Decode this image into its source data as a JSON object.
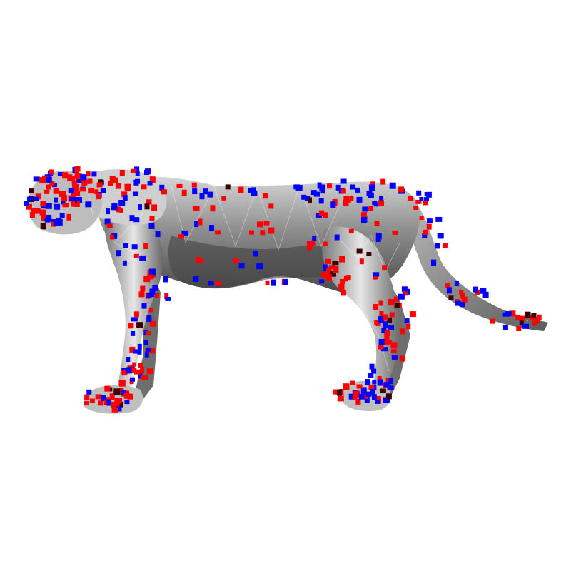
{
  "scene": {
    "subject": "cheetah-mesh",
    "background_color": "#ffffff",
    "mesh_colors": {
      "light": "#d9d9d9",
      "mid": "#9a9a9a",
      "dark": "#5a5a5a",
      "shadow": "#3a3a3a"
    },
    "marker_colors": {
      "primary": "#0000ff",
      "secondary": "#ff0000",
      "tertiary": "#3a0000"
    }
  }
}
